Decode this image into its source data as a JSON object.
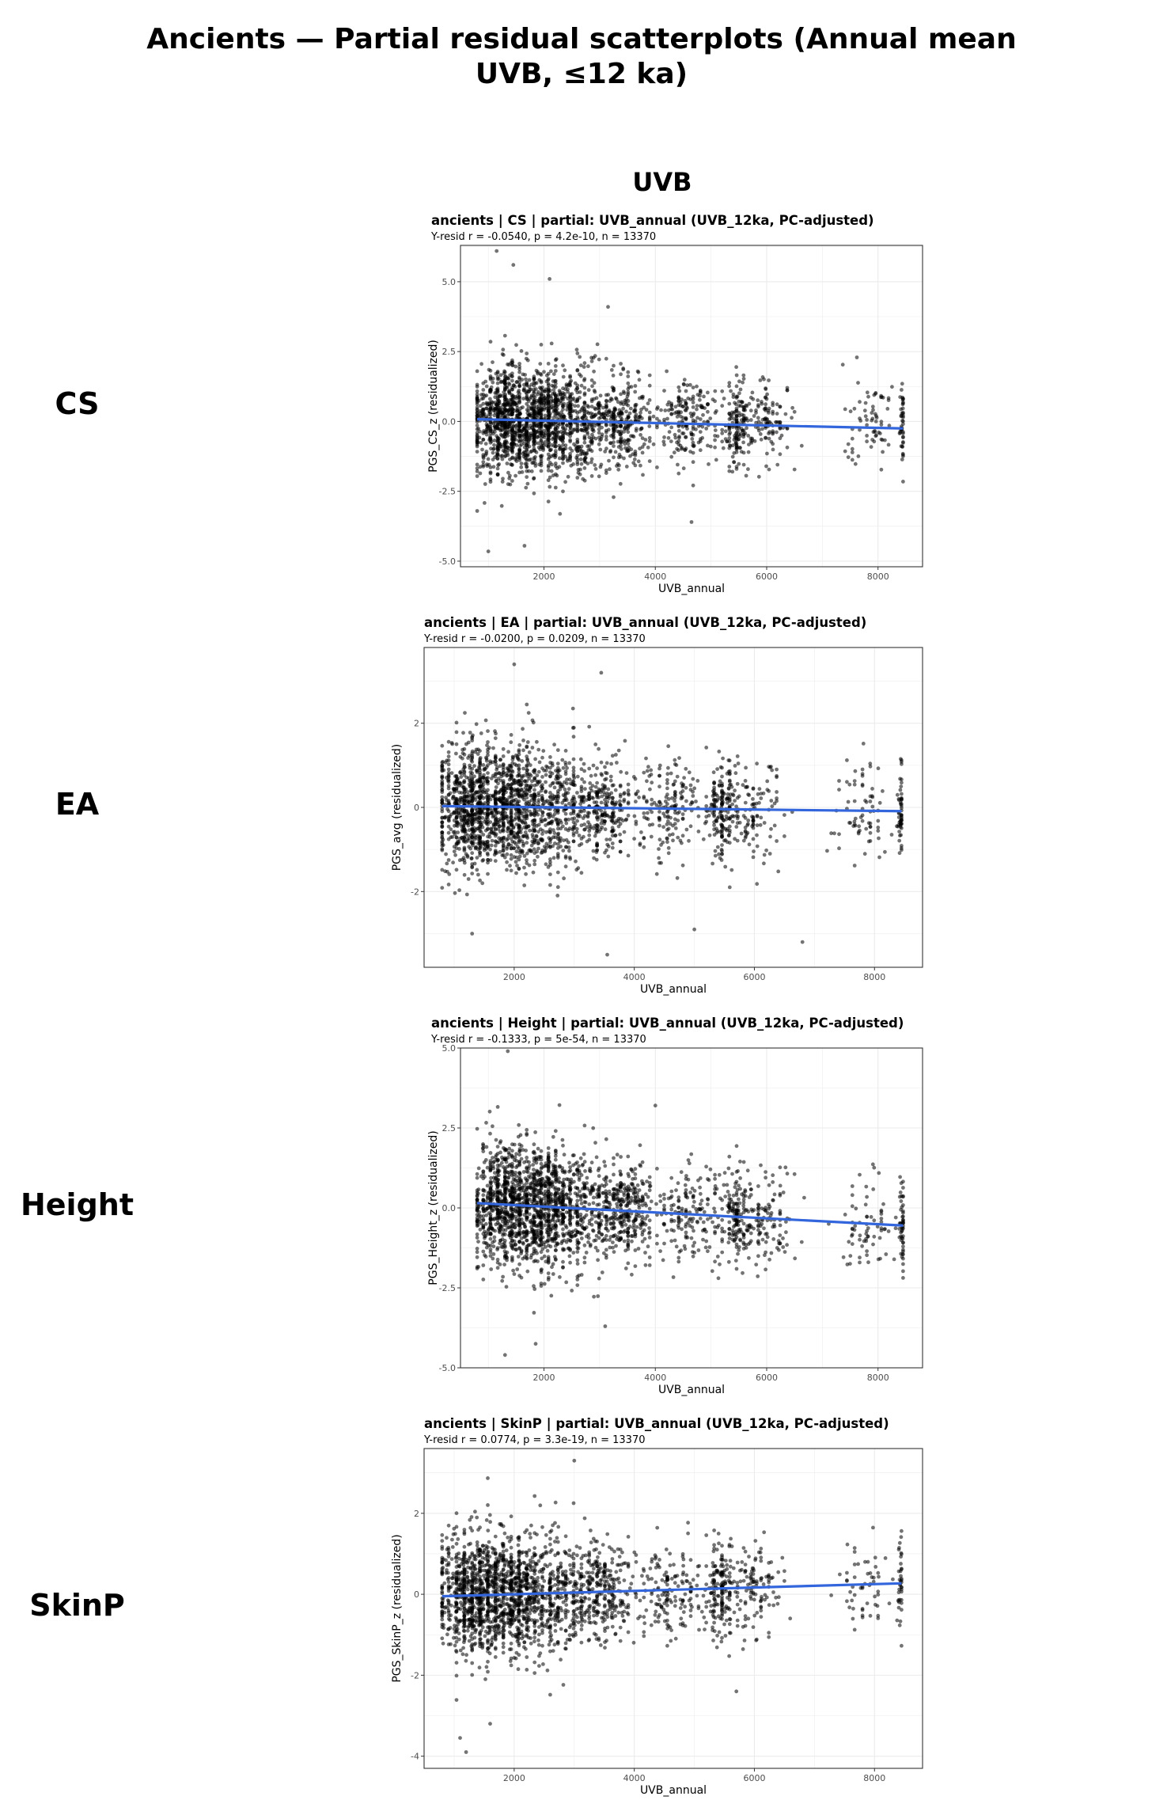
{
  "page": {
    "title_line1": "Ancients — Partial residual scatterplots (Annual mean",
    "title_line2": "UVB, ≤12 ka)",
    "column_header": "UVB"
  },
  "rows": [
    {
      "label": "CS"
    },
    {
      "label": "EA"
    },
    {
      "label": "Height"
    },
    {
      "label": "SkinP"
    }
  ],
  "colors": {
    "points": "#000000",
    "fit_line": "#3366dd",
    "grid": "#ebebeb",
    "panel_border": "#333333"
  },
  "chart_data": [
    {
      "type": "scatter",
      "title": "ancients | CS | partial: UVB_annual (UVB_12ka, PC-adjusted)",
      "subtitle": "Y-resid r = -0.0540, p = 4.2e-10, n = 13370",
      "xlabel": "UVB_annual",
      "ylabel": "PGS_CS_z (residualized)",
      "xlim": [
        500,
        8800
      ],
      "ylim": [
        -5.2,
        6.3
      ],
      "xticks": [
        2000,
        4000,
        6000,
        8000
      ],
      "yticks": [
        -5.0,
        -2.5,
        0.0,
        2.5,
        5.0
      ],
      "ytick_labels": [
        "-5.0",
        "-2.5",
        "0.0",
        "2.5",
        "5.0"
      ],
      "fit": {
        "x": [
          800,
          8450
        ],
        "y": [
          0.08,
          -0.25
        ]
      },
      "point_cloud": {
        "n_rendered": 2600,
        "sd": 0.95,
        "outliers": [
          [
            1150,
            6.1
          ],
          [
            1450,
            5.6
          ],
          [
            2100,
            5.1
          ],
          [
            1650,
            -4.45
          ],
          [
            1000,
            -4.65
          ],
          [
            3150,
            4.1
          ],
          [
            4650,
            -3.6
          ]
        ]
      },
      "grid": true
    },
    {
      "type": "scatter",
      "title": "ancients | EA | partial: UVB_annual (UVB_12ka, PC-adjusted)",
      "subtitle": "Y-resid r = -0.0200, p = 0.0209, n = 13370",
      "xlabel": "UVB_annual",
      "ylabel": "PGS_avg (residualized)",
      "xlim": [
        500,
        8800
      ],
      "ylim": [
        -3.8,
        3.8
      ],
      "xticks": [
        2000,
        4000,
        6000,
        8000
      ],
      "yticks": [
        -2,
        0,
        2
      ],
      "ytick_labels": [
        "-2",
        "0",
        "2"
      ],
      "fit": {
        "x": [
          800,
          8450
        ],
        "y": [
          0.03,
          -0.09
        ]
      },
      "point_cloud": {
        "n_rendered": 2600,
        "sd": 0.72,
        "outliers": [
          [
            2000,
            3.4
          ],
          [
            3450,
            3.2
          ],
          [
            3550,
            -3.5
          ],
          [
            6800,
            -3.2
          ],
          [
            1300,
            -3.0
          ],
          [
            5000,
            -2.9
          ]
        ]
      },
      "grid": true
    },
    {
      "type": "scatter",
      "title": "ancients | Height | partial: UVB_annual (UVB_12ka, PC-adjusted)",
      "subtitle": "Y-resid r = -0.1333, p = 5e-54, n = 13370",
      "xlabel": "UVB_annual",
      "ylabel": "PGS_Height_z (residualized)",
      "xlim": [
        500,
        8800
      ],
      "ylim": [
        -5.0,
        5.0
      ],
      "xticks": [
        2000,
        4000,
        6000,
        8000
      ],
      "yticks": [
        -5.0,
        -2.5,
        0.0,
        2.5,
        5.0
      ],
      "ytick_labels": [
        "-5.0",
        "-2.5",
        "0.0",
        "2.5",
        "5.0"
      ],
      "fit": {
        "x": [
          800,
          8450
        ],
        "y": [
          0.15,
          -0.55
        ]
      },
      "point_cloud": {
        "n_rendered": 2600,
        "sd": 0.95,
        "outliers": [
          [
            1350,
            4.9
          ],
          [
            1300,
            -4.6
          ],
          [
            1850,
            -4.25
          ],
          [
            4000,
            3.2
          ],
          [
            3100,
            -3.7
          ]
        ]
      },
      "grid": true
    },
    {
      "type": "scatter",
      "title": "ancients | SkinP | partial: UVB_annual (UVB_12ka, PC-adjusted)",
      "subtitle": "Y-resid r = 0.0774, p = 3.3e-19, n = 13370",
      "xlabel": "UVB_annual",
      "ylabel": "PGS_SkinP_z (residualized)",
      "xlim": [
        500,
        8800
      ],
      "ylim": [
        -4.3,
        3.6
      ],
      "xticks": [
        2000,
        4000,
        6000,
        8000
      ],
      "yticks": [
        -4,
        -2,
        0,
        2
      ],
      "ytick_labels": [
        "-4",
        "-2",
        "0",
        "2"
      ],
      "fit": {
        "x": [
          800,
          8450
        ],
        "y": [
          -0.05,
          0.27
        ]
      },
      "point_cloud": {
        "n_rendered": 2600,
        "sd": 0.75,
        "outliers": [
          [
            3000,
            3.3
          ],
          [
            1200,
            -3.9
          ],
          [
            1100,
            -3.55
          ],
          [
            1600,
            -3.2
          ],
          [
            5700,
            -2.4
          ]
        ]
      },
      "grid": true
    }
  ]
}
